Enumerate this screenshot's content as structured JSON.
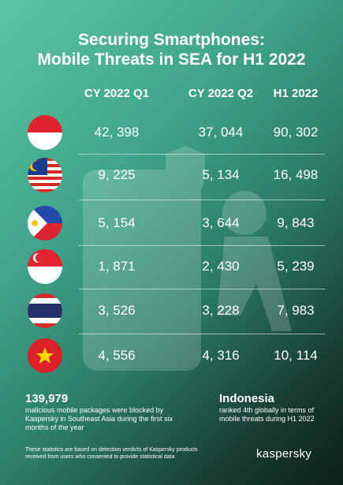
{
  "header": {
    "title": [
      "Securing Smartphones:",
      "Mobile Threats in SEA for H1 2022"
    ]
  },
  "table": {
    "columns": [
      "CY 2022 Q1",
      "CY 2022 Q2",
      "H1 2022"
    ],
    "rows": [
      [
        "42, 398",
        "37, 044",
        "90, 302"
      ],
      [
        "9, 225",
        "5, 134",
        "16, 498"
      ],
      [
        "5, 154",
        "3, 644",
        "9, 843"
      ],
      [
        "1, 871",
        "2, 430",
        "5, 239"
      ],
      [
        "3, 526",
        "3, 228",
        "7, 983"
      ],
      [
        "4, 556",
        "4, 316",
        "10, 114"
      ]
    ]
  },
  "stats": [
    {
      "headline": "139,979",
      "text": "malicious mobile packages were blocked by Kaspersky in Southeast Asia during the first six months of the year"
    },
    {
      "headline": "Indonesia",
      "text": "ranked 4th globally in terms of mobile threats during H1 2022"
    }
  ],
  "footer": {
    "note": "These statistics are based on detection verdicts of Kaspersky products received from users who consented to provide statistical data",
    "brand": "kaspersky"
  }
}
